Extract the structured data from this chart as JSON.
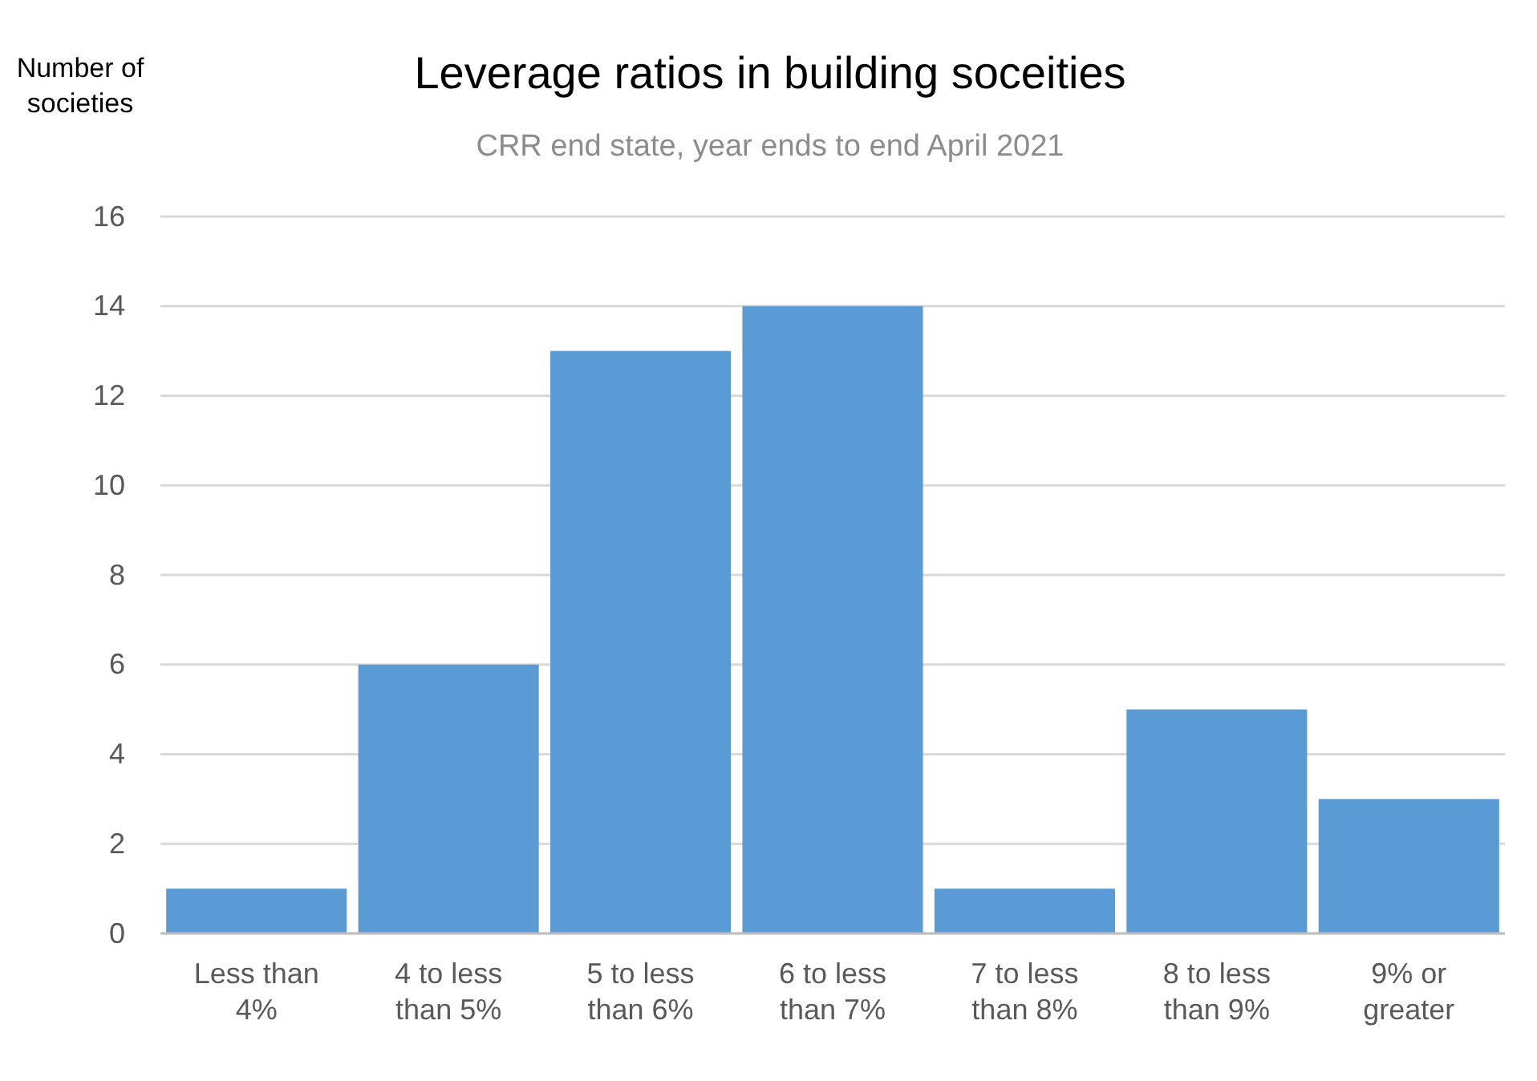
{
  "chart_data": {
    "type": "bar",
    "title": "Leverage ratios in building soceities",
    "subtitle": "CRR end state, year ends to end April 2021",
    "ylabel": "Number of societies",
    "categories": [
      "Less than 4%",
      "4 to less than 5%",
      "5 to less than 6%",
      "6 to less than 7%",
      "7 to less than 8%",
      "8 to less than 9%",
      "9% or greater"
    ],
    "values": [
      1,
      6,
      13,
      14,
      1,
      5,
      3
    ],
    "color": "#5b9bd5",
    "ylim": [
      0,
      16
    ],
    "yticks": [
      0,
      2,
      4,
      6,
      8,
      10,
      12,
      14,
      16
    ],
    "grid": "y"
  }
}
